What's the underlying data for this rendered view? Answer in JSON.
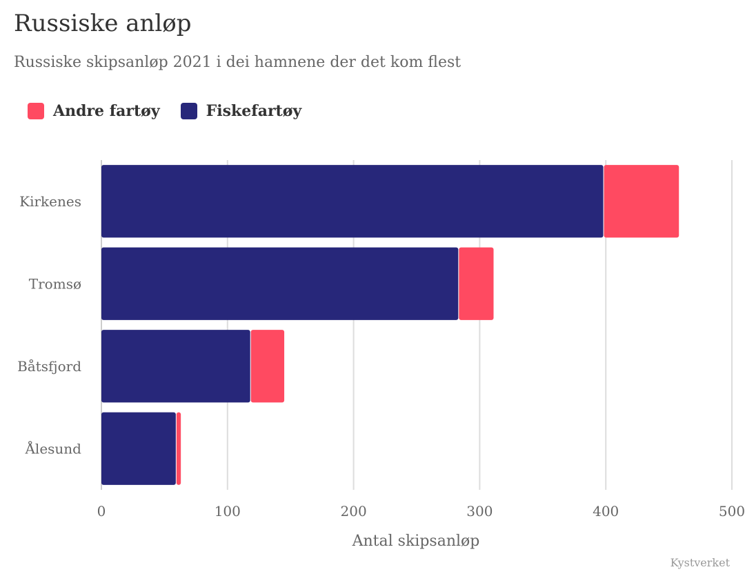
{
  "chart_data": {
    "type": "bar",
    "orientation": "horizontal",
    "stacked": true,
    "title": "Russiske anløp",
    "subtitle": "Russiske skipsanløp 2021 i dei hamnene der det kom flest",
    "categories": [
      "Kirkenes",
      "Tromsø",
      "Båtsfjord",
      "Ålesund"
    ],
    "series": [
      {
        "name": "Fiskefartøy",
        "color": "#27277a",
        "values": [
          398,
          283,
          118,
          59
        ]
      },
      {
        "name": "Andre fartøy",
        "color": "#ff4a61",
        "values": [
          60,
          28,
          27,
          4
        ]
      }
    ],
    "legend_order": [
      1,
      0
    ],
    "legend_position": "top-left",
    "xlabel": "Antal skipsanløp",
    "ylabel": "",
    "xlim": [
      0,
      500
    ],
    "xticks": [
      "0",
      "100",
      "200",
      "300",
      "400",
      "500"
    ],
    "grid": "vertical",
    "source": "Kystverket"
  }
}
